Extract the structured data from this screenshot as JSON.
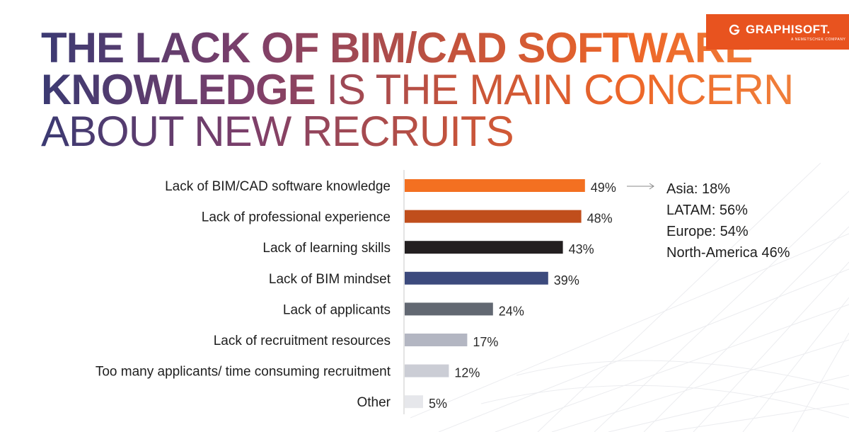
{
  "title": {
    "bold_1": "THE LACK OF BIM/CAD SOFTWARE",
    "bold_2": "KNOWLEDGE",
    "light_2": "IS THE MAIN CONCERN",
    "light_3": "ABOUT NEW RECRUITS"
  },
  "logo": {
    "name": "GRAPHISOFT.",
    "tagline": "A NEMETSCHEK COMPANY",
    "color": "#e8531f"
  },
  "chart_data": {
    "type": "bar",
    "orientation": "horizontal",
    "categories": [
      "Lack of BIM/CAD software knowledge",
      "Lack of professional experience",
      "Lack of learning skills",
      "Lack of BIM mindset",
      "Lack of applicants",
      "Lack of recruitment resources",
      "Too many applicants/ time consuming recruitment",
      "Other"
    ],
    "values": [
      49,
      48,
      43,
      39,
      24,
      17,
      12,
      5
    ],
    "value_labels": [
      "49%",
      "48%",
      "43%",
      "39%",
      "24%",
      "17%",
      "12%",
      "5%"
    ],
    "colors": [
      "#f37021",
      "#c04e1c",
      "#231f20",
      "#3c4a7d",
      "#626872",
      "#b3b6c2",
      "#cbcdd5",
      "#e6e7eb"
    ],
    "xlim": [
      0,
      50
    ],
    "grid": false,
    "annotation": {
      "arrow_from_category": "Lack of BIM/CAD software knowledge",
      "lines": [
        "Asia: 18%",
        "LATAM: 56%",
        "Europe: 54%",
        "North-America 46%"
      ]
    }
  }
}
